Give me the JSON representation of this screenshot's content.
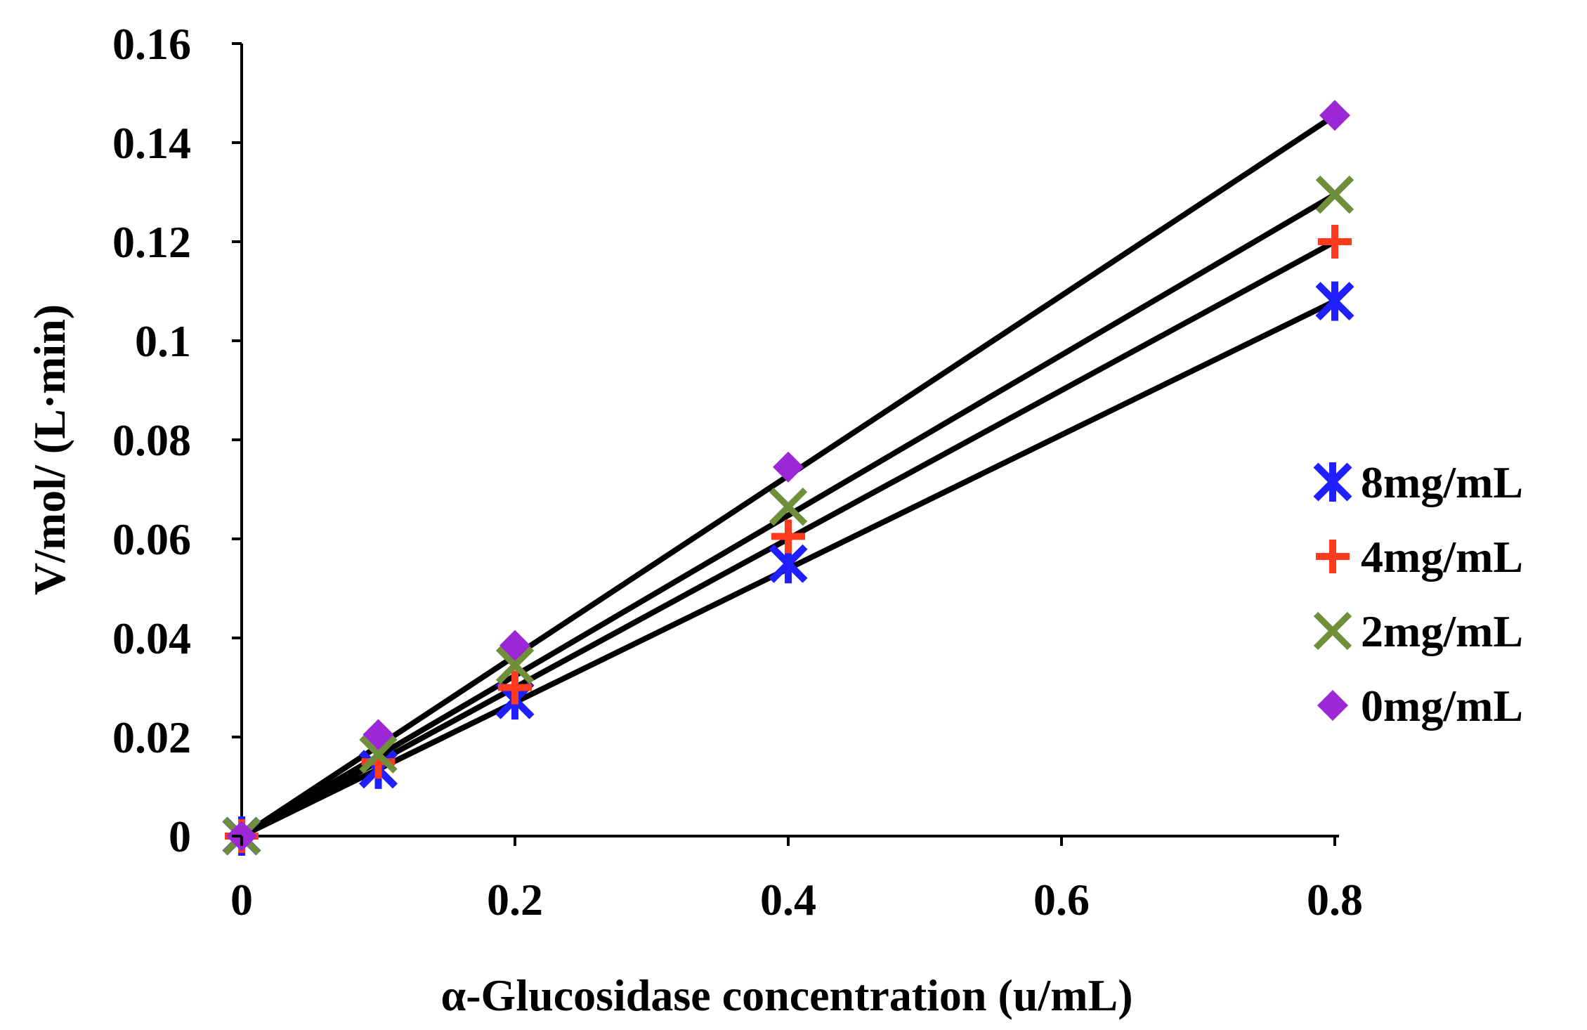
{
  "chart_data": {
    "type": "scatter",
    "title": "",
    "xlabel": "α-Glucosidase concentration (u/mL)",
    "ylabel": "V/mol/ (L·min)",
    "xlim": [
      0,
      0.8
    ],
    "ylim": [
      0,
      0.16
    ],
    "xticks": [
      0,
      0.2,
      0.4,
      0.6,
      0.8
    ],
    "xtick_labels": [
      "0",
      "0.2",
      "0.4",
      "0.6",
      "0.8"
    ],
    "yticks": [
      0,
      0.02,
      0.04,
      0.06,
      0.08,
      0.1,
      0.12,
      0.14,
      0.16
    ],
    "ytick_labels": [
      "0",
      "0.02",
      "0.04",
      "0.06",
      "0.08",
      "0.1",
      "0.12",
      "0.14",
      "0.16"
    ],
    "grid": false,
    "legend_position": "right",
    "series": [
      {
        "name": "8mg/mL",
        "marker": "asterisk",
        "color": "#1f1fff",
        "x": [
          0,
          0.1,
          0.2,
          0.4,
          0.8
        ],
        "y": [
          0,
          0.0135,
          0.0275,
          0.055,
          0.108
        ],
        "fit": [
          0,
          0.108
        ]
      },
      {
        "name": "4mg/mL",
        "marker": "plus",
        "color": "#ff3b1f",
        "x": [
          0,
          0.1,
          0.2,
          0.4,
          0.8
        ],
        "y": [
          0,
          0.015,
          0.03,
          0.0605,
          0.12
        ],
        "fit": [
          0,
          0.12
        ]
      },
      {
        "name": "2mg/mL",
        "marker": "cross",
        "color": "#6f8f3a",
        "x": [
          0,
          0.1,
          0.2,
          0.4,
          0.8
        ],
        "y": [
          0,
          0.0165,
          0.0345,
          0.0665,
          0.1295
        ],
        "fit": [
          0,
          0.1295
        ]
      },
      {
        "name": "0mg/mL",
        "marker": "diamond",
        "color": "#9b27d6",
        "x": [
          0,
          0.1,
          0.2,
          0.4,
          0.8
        ],
        "y": [
          0,
          0.0205,
          0.0385,
          0.0745,
          0.1455
        ],
        "fit": [
          0,
          0.1455
        ]
      }
    ]
  }
}
